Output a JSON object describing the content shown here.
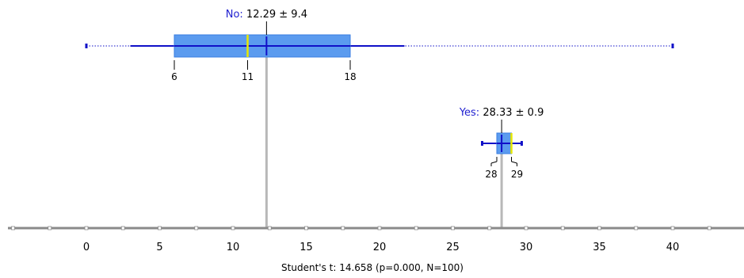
{
  "chart_data": {
    "type": "boxplot",
    "xlim": [
      0,
      40
    ],
    "xticks": [
      0,
      5,
      10,
      15,
      20,
      25,
      30,
      35,
      40
    ],
    "caption": "Student's t: 14.658 (p=0.000, N=100)",
    "groups": [
      {
        "name": "No",
        "mean": 12.29,
        "sd": 9.4,
        "mean_sd_text": "12.29 ± 9.4",
        "min": 0,
        "whisker_low": 3,
        "q1": 6,
        "median": 11,
        "q3": 18,
        "whisker_high": 21.7,
        "max": 40,
        "q1_label": "6",
        "median_label": "11",
        "q3_label": "18"
      },
      {
        "name": "Yes",
        "mean": 28.33,
        "sd": 0.9,
        "mean_sd_text": "28.33 ± 0.9",
        "min": 27,
        "whisker_low": 27,
        "q1": 28,
        "median": 29,
        "q3": 29,
        "whisker_high": 29.7,
        "max": 29.7,
        "q1_label": "28",
        "median_label": "",
        "q3_label": "29"
      }
    ],
    "colors": {
      "box_fill": "#5b9bef",
      "box_edge": "#3a7ee0",
      "whisker": "#1010c8",
      "median": "#e8e800",
      "mean_line": "#b8b8b8",
      "axis": "#8a8a8a",
      "name_text": "#1f1fd0"
    }
  }
}
